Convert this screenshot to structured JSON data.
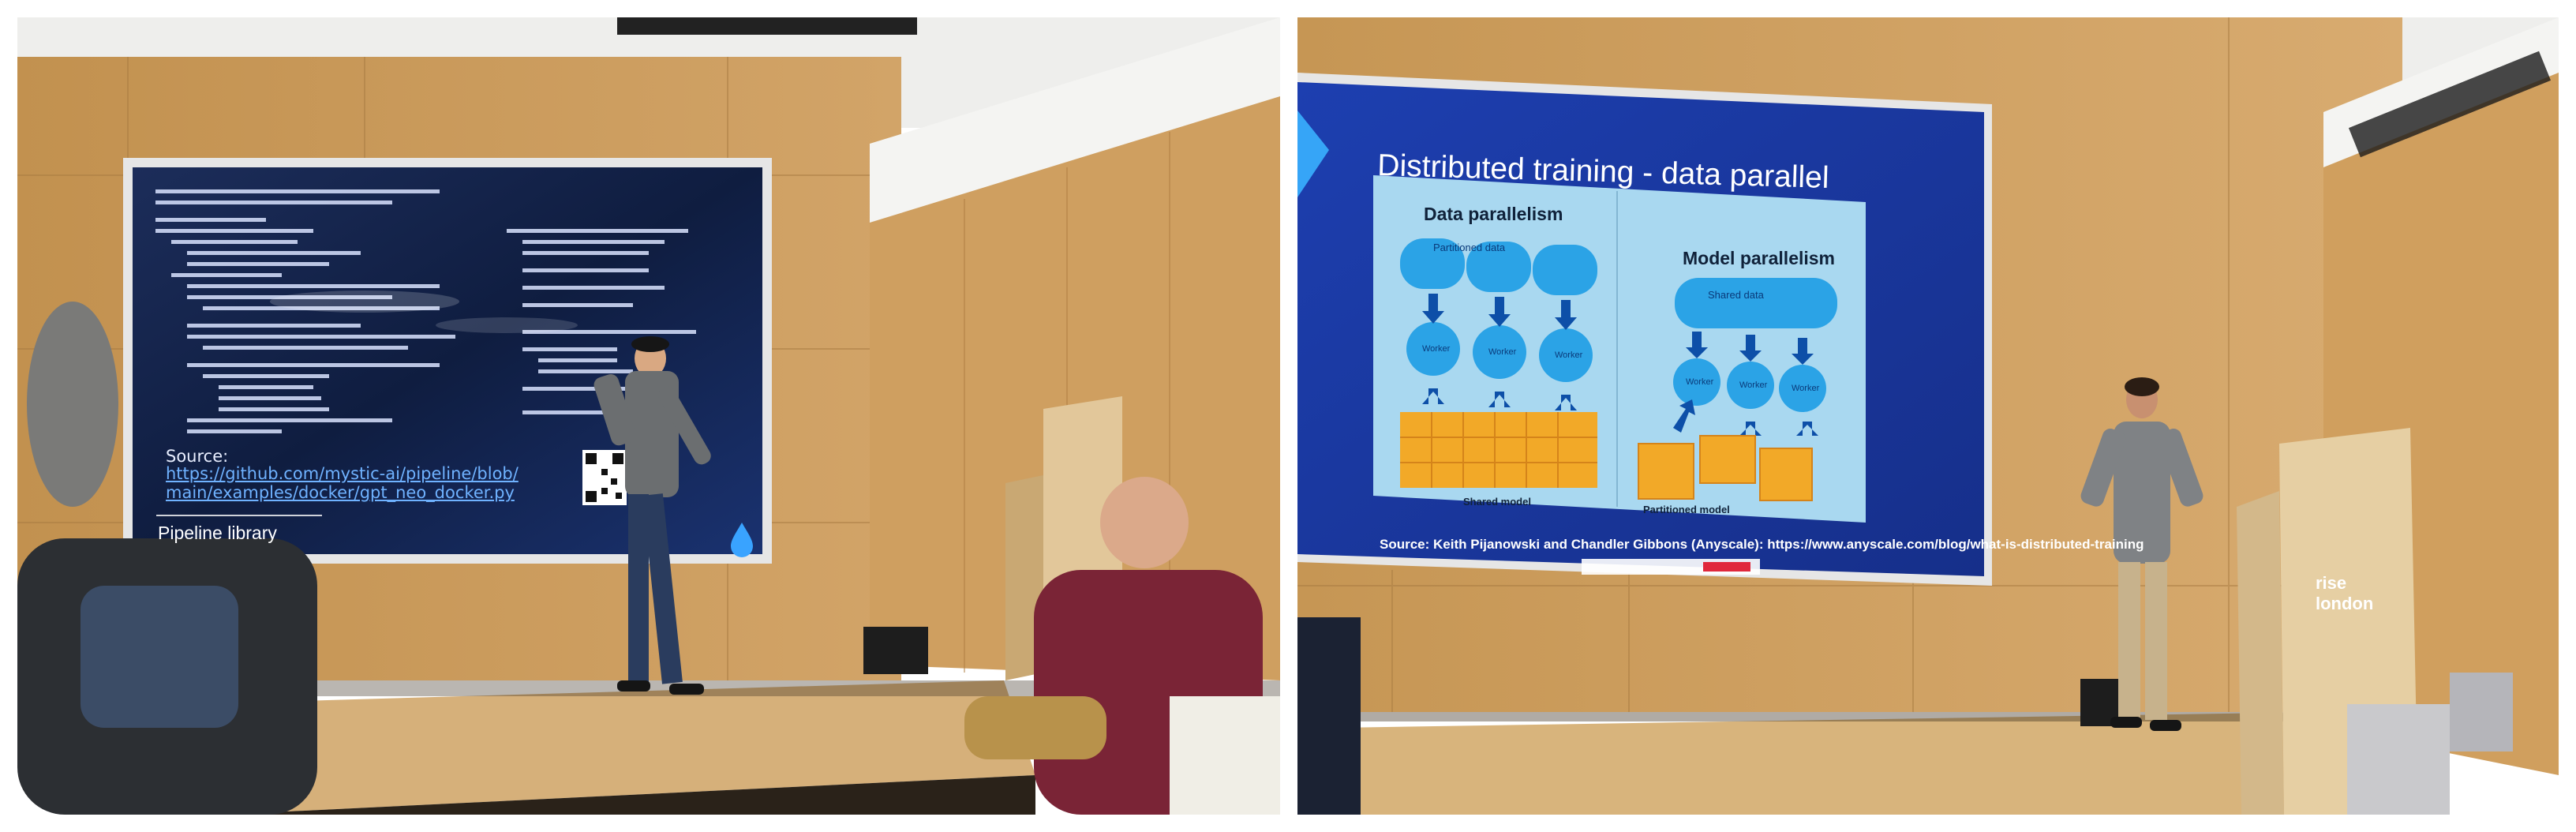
{
  "left_photo": {
    "slide": {
      "source_label": "Source:",
      "source_link_line1": "https://github.com/mystic-ai/pipeline/blob/",
      "source_link_line2": "main/examples/docker/gpt_neo_docker.py",
      "footer_label": "Pipeline library"
    }
  },
  "right_photo": {
    "slide": {
      "title": "Distributed training - data parallel",
      "data_parallelism_title": "Data parallelism",
      "model_parallelism_title": "Model parallelism",
      "partitioned_data_label": "Partitioned data",
      "shared_data_label": "Shared data",
      "worker_label": "Worker",
      "shared_model_label": "Shared model",
      "partitioned_model_label": "Partitioned model",
      "source_credit": "Source: Keith Pijanowski and Chandler Gibbons (Anyscale): https://www.anyscale.com/blog/what-is-distributed-training"
    },
    "podium_sign_line1": "rise",
    "podium_sign_line2": "london"
  },
  "colors": {
    "wood": "#c99a5c",
    "screen_dark": "#12244a",
    "slide_blue": "#1f3aa8",
    "diagram_bg": "#a9d8f0",
    "cylinder_blue": "#2ba3e6",
    "block_orange": "#f2a928",
    "stage_floor": "#d8b47c"
  }
}
